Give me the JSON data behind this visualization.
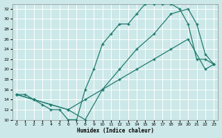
{
  "xlabel": "Humidex (Indice chaleur)",
  "bg_color": "#cce8e8",
  "grid_color": "#b8d8d8",
  "line_color": "#1e7a6e",
  "xlim": [
    -0.5,
    23.5
  ],
  "ylim": [
    10,
    33
  ],
  "xticks": [
    0,
    1,
    2,
    3,
    4,
    5,
    6,
    7,
    8,
    9,
    10,
    11,
    12,
    13,
    14,
    15,
    16,
    17,
    18,
    19,
    20,
    21,
    22,
    23
  ],
  "yticks": [
    10,
    12,
    14,
    16,
    18,
    20,
    22,
    24,
    26,
    28,
    30,
    32
  ],
  "series1_x": [
    0,
    1,
    2,
    3,
    4,
    5,
    6,
    7,
    8,
    9,
    10,
    11,
    12,
    13,
    14,
    15,
    16,
    17,
    18,
    19,
    20,
    21,
    22,
    23
  ],
  "series1_y": [
    15,
    15,
    14,
    13,
    12,
    12,
    10,
    10,
    16,
    20,
    25,
    27,
    29,
    29,
    31,
    33,
    33,
    33,
    33,
    32,
    29,
    22,
    22,
    21
  ],
  "series2_x": [
    0,
    2,
    4,
    6,
    8,
    10,
    12,
    14,
    16,
    18,
    20,
    21,
    22,
    23
  ],
  "series2_y": [
    15,
    14,
    13,
    12,
    10,
    16,
    20,
    24,
    27,
    31,
    32,
    29,
    23,
    21
  ],
  "series3_x": [
    0,
    2,
    4,
    6,
    8,
    10,
    12,
    14,
    16,
    18,
    20,
    22,
    23
  ],
  "series3_y": [
    15,
    14,
    13,
    12,
    14,
    16,
    18,
    20,
    22,
    24,
    26,
    20,
    21
  ]
}
